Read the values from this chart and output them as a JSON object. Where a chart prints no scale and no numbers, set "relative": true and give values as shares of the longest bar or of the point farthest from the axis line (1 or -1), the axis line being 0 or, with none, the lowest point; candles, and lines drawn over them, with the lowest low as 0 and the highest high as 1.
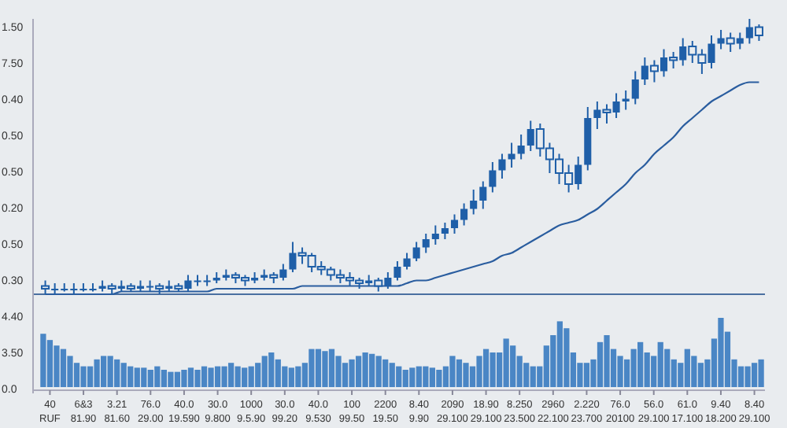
{
  "chart_data": [
    {
      "type": "candlestick",
      "relative": true,
      "color": "#1f5fa8",
      "categories": [
        null,
        null,
        null,
        null,
        null,
        null,
        null,
        null,
        null,
        null,
        null,
        null,
        null,
        null,
        null,
        null,
        null,
        null,
        null,
        null,
        null,
        null,
        null,
        null,
        null,
        null,
        null,
        null,
        null,
        null,
        null,
        null,
        null,
        null,
        null,
        null,
        null,
        null,
        null,
        null,
        null,
        null,
        null,
        null,
        null,
        null,
        null,
        null,
        null,
        null,
        null,
        null,
        null,
        null,
        null,
        null,
        null,
        null,
        null,
        null,
        null,
        null,
        null,
        null,
        null,
        null,
        null,
        null,
        null,
        null,
        null,
        null,
        null,
        null,
        null,
        null
      ],
      "ohlc": [
        [
          0.03,
          0.05,
          0,
          0.02
        ],
        [
          0.02,
          0.04,
          0,
          0.02
        ],
        [
          0.02,
          0.04,
          0.01,
          0.02
        ],
        [
          0.02,
          0.04,
          0,
          0.02
        ],
        [
          0.02,
          0.04,
          0.01,
          0.02
        ],
        [
          0.02,
          0.04,
          0.01,
          0.02
        ],
        [
          0.02,
          0.05,
          0.01,
          0.03
        ],
        [
          0.03,
          0.04,
          0,
          0.02
        ],
        [
          0.02,
          0.05,
          0.01,
          0.03
        ],
        [
          0.03,
          0.04,
          0.01,
          0.02
        ],
        [
          0.02,
          0.05,
          0.01,
          0.03
        ],
        [
          0.03,
          0.05,
          0.01,
          0.03
        ],
        [
          0.03,
          0.04,
          0,
          0.02
        ],
        [
          0.02,
          0.05,
          0.01,
          0.03
        ],
        [
          0.03,
          0.04,
          0.01,
          0.02
        ],
        [
          0.02,
          0.07,
          0.01,
          0.05
        ],
        [
          0.05,
          0.07,
          0.03,
          0.05
        ],
        [
          0.05,
          0.07,
          0.03,
          0.05
        ],
        [
          0.05,
          0.08,
          0.04,
          0.06
        ],
        [
          0.06,
          0.09,
          0.05,
          0.07
        ],
        [
          0.07,
          0.08,
          0.04,
          0.06
        ],
        [
          0.06,
          0.07,
          0.03,
          0.05
        ],
        [
          0.05,
          0.08,
          0.04,
          0.06
        ],
        [
          0.06,
          0.09,
          0.05,
          0.07
        ],
        [
          0.07,
          0.08,
          0.04,
          0.06
        ],
        [
          0.06,
          0.11,
          0.05,
          0.09
        ],
        [
          0.09,
          0.19,
          0.08,
          0.15
        ],
        [
          0.15,
          0.17,
          0.11,
          0.14
        ],
        [
          0.14,
          0.15,
          0.08,
          0.1
        ],
        [
          0.1,
          0.12,
          0.07,
          0.09
        ],
        [
          0.09,
          0.1,
          0.05,
          0.07
        ],
        [
          0.07,
          0.09,
          0.04,
          0.06
        ],
        [
          0.06,
          0.08,
          0.03,
          0.05
        ],
        [
          0.05,
          0.06,
          0.02,
          0.04
        ],
        [
          0.04,
          0.07,
          0.03,
          0.05
        ],
        [
          0.05,
          0.06,
          0.01,
          0.03
        ],
        [
          0.03,
          0.08,
          0.02,
          0.06
        ],
        [
          0.06,
          0.12,
          0.05,
          0.1
        ],
        [
          0.1,
          0.15,
          0.09,
          0.13
        ],
        [
          0.13,
          0.19,
          0.12,
          0.17
        ],
        [
          0.17,
          0.22,
          0.15,
          0.2
        ],
        [
          0.2,
          0.25,
          0.18,
          0.22
        ],
        [
          0.22,
          0.26,
          0.2,
          0.24
        ],
        [
          0.24,
          0.29,
          0.22,
          0.27
        ],
        [
          0.27,
          0.33,
          0.25,
          0.31
        ],
        [
          0.31,
          0.38,
          0.29,
          0.34
        ],
        [
          0.34,
          0.41,
          0.31,
          0.39
        ],
        [
          0.39,
          0.48,
          0.37,
          0.45
        ],
        [
          0.45,
          0.51,
          0.42,
          0.49
        ],
        [
          0.49,
          0.55,
          0.46,
          0.51
        ],
        [
          0.51,
          0.58,
          0.49,
          0.54
        ],
        [
          0.54,
          0.63,
          0.52,
          0.6
        ],
        [
          0.6,
          0.62,
          0.5,
          0.53
        ],
        [
          0.53,
          0.55,
          0.44,
          0.49
        ],
        [
          0.49,
          0.51,
          0.4,
          0.44
        ],
        [
          0.44,
          0.47,
          0.37,
          0.4
        ],
        [
          0.4,
          0.5,
          0.38,
          0.47
        ],
        [
          0.47,
          0.68,
          0.45,
          0.64
        ],
        [
          0.64,
          0.7,
          0.6,
          0.67
        ],
        [
          0.67,
          0.69,
          0.62,
          0.66
        ],
        [
          0.66,
          0.73,
          0.64,
          0.7
        ],
        [
          0.7,
          0.74,
          0.67,
          0.71
        ],
        [
          0.71,
          0.81,
          0.69,
          0.78
        ],
        [
          0.78,
          0.86,
          0.76,
          0.83
        ],
        [
          0.83,
          0.85,
          0.77,
          0.81
        ],
        [
          0.81,
          0.89,
          0.79,
          0.86
        ],
        [
          0.86,
          0.88,
          0.82,
          0.85
        ],
        [
          0.85,
          0.93,
          0.83,
          0.9
        ],
        [
          0.9,
          0.92,
          0.84,
          0.87
        ],
        [
          0.87,
          0.89,
          0.8,
          0.84
        ],
        [
          0.84,
          0.94,
          0.82,
          0.91
        ],
        [
          0.91,
          0.96,
          0.89,
          0.93
        ],
        [
          0.93,
          0.95,
          0.88,
          0.91
        ],
        [
          0.91,
          0.95,
          0.89,
          0.93
        ],
        [
          0.93,
          1,
          0.91,
          0.97
        ],
        [
          0.97,
          0.98,
          0.92,
          0.94
        ]
      ],
      "series": [
        {
          "type": "line",
          "color": "#2a5d9f",
          "values": [
            0,
            0,
            0,
            0,
            0,
            0,
            0,
            0,
            0.01,
            0.01,
            0.01,
            0.01,
            0.01,
            0.01,
            0.01,
            0.01,
            0.01,
            0.01,
            0.02,
            0.02,
            0.02,
            0.02,
            0.02,
            0.02,
            0.02,
            0.02,
            0.02,
            0.03,
            0.03,
            0.03,
            0.03,
            0.03,
            0.03,
            0.03,
            0.03,
            0.03,
            0.03,
            0.03,
            0.04,
            0.05,
            0.05,
            0.06,
            0.07,
            0.08,
            0.09,
            0.1,
            0.11,
            0.12,
            0.14,
            0.15,
            0.17,
            0.19,
            0.21,
            0.23,
            0.25,
            0.26,
            0.27,
            0.29,
            0.31,
            0.34,
            0.37,
            0.4,
            0.44,
            0.47,
            0.51,
            0.54,
            0.57,
            0.61,
            0.64,
            0.67,
            0.7,
            0.72,
            0.74,
            0.76,
            0.77,
            0.77
          ]
        }
      ],
      "ref_lines": [
        {
          "axis": "y",
          "value": 0,
          "color": "#4a6fa0"
        }
      ],
      "annotations": [
        "1.50",
        "7.50",
        "0.40",
        "0.50",
        "0.50",
        "0.20",
        "0.50",
        "0.30",
        "4.40",
        "3.50",
        "0.0"
      ]
    },
    {
      "type": "bar",
      "relative": true,
      "color": "#4a86c5",
      "categories": [
        null,
        "40\nRUF",
        null,
        null,
        null,
        null,
        "6&3\n81.90",
        null,
        null,
        null,
        null,
        "3.21\n81.60",
        null,
        null,
        null,
        null,
        "76.0\n29.00",
        null,
        null,
        null,
        null,
        "40.0\n19.590",
        null,
        null,
        null,
        null,
        "30.0\n9.800",
        null,
        null,
        null,
        null,
        "1000\n9.5.90",
        null,
        null,
        null,
        null,
        "30.0\n99.20",
        null,
        null,
        null,
        null,
        "40.0\n9.530",
        null,
        null,
        null,
        null,
        "100\n99.50",
        null,
        null,
        null,
        null,
        "2200\n19.50",
        null,
        null,
        null,
        null,
        "8.40\n9.90",
        null,
        null,
        null,
        null,
        "2090\n29.100",
        null,
        null,
        null,
        null,
        "18.90\n29.100",
        null,
        null,
        null,
        null,
        "8.250\n23.500",
        null,
        null,
        null,
        null,
        "2960\n22.100",
        null,
        null,
        null,
        null,
        "2.220\n23.700",
        null,
        null,
        null,
        null,
        "76.0\n20100",
        null,
        null,
        null,
        null,
        "56.0\n29.100",
        null,
        null,
        null,
        null,
        "61.0\n17.100",
        null,
        null,
        null,
        null,
        "9.40\n18.200",
        null,
        null,
        null,
        null,
        "8.40\n29.100",
        null
      ],
      "values": [
        0.77,
        0.68,
        0.6,
        0.55,
        0.45,
        0.35,
        0.3,
        0.3,
        0.4,
        0.45,
        0.45,
        0.4,
        0.35,
        0.3,
        0.28,
        0.28,
        0.25,
        0.3,
        0.25,
        0.22,
        0.22,
        0.25,
        0.28,
        0.25,
        0.3,
        0.28,
        0.3,
        0.3,
        0.35,
        0.3,
        0.28,
        0.3,
        0.35,
        0.45,
        0.5,
        0.4,
        0.3,
        0.28,
        0.3,
        0.35,
        0.55,
        0.55,
        0.52,
        0.55,
        0.45,
        0.35,
        0.4,
        0.45,
        0.5,
        0.48,
        0.45,
        0.4,
        0.35,
        0.3,
        0.25,
        0.28,
        0.3,
        0.3,
        0.28,
        0.25,
        0.3,
        0.45,
        0.4,
        0.35,
        0.3,
        0.45,
        0.55,
        0.5,
        0.5,
        0.7,
        0.6,
        0.45,
        0.35,
        0.3,
        0.3,
        0.6,
        0.75,
        0.95,
        0.85,
        0.5,
        0.35,
        0.35,
        0.4,
        0.65,
        0.75,
        0.55,
        0.45,
        0.4,
        0.55,
        0.65,
        0.5,
        0.45,
        0.65,
        0.55,
        0.4,
        0.35,
        0.55,
        0.45,
        0.35,
        0.4,
        0.7,
        1,
        0.8,
        0.4,
        0.3,
        0.3,
        0.35,
        0.4
      ]
    }
  ]
}
